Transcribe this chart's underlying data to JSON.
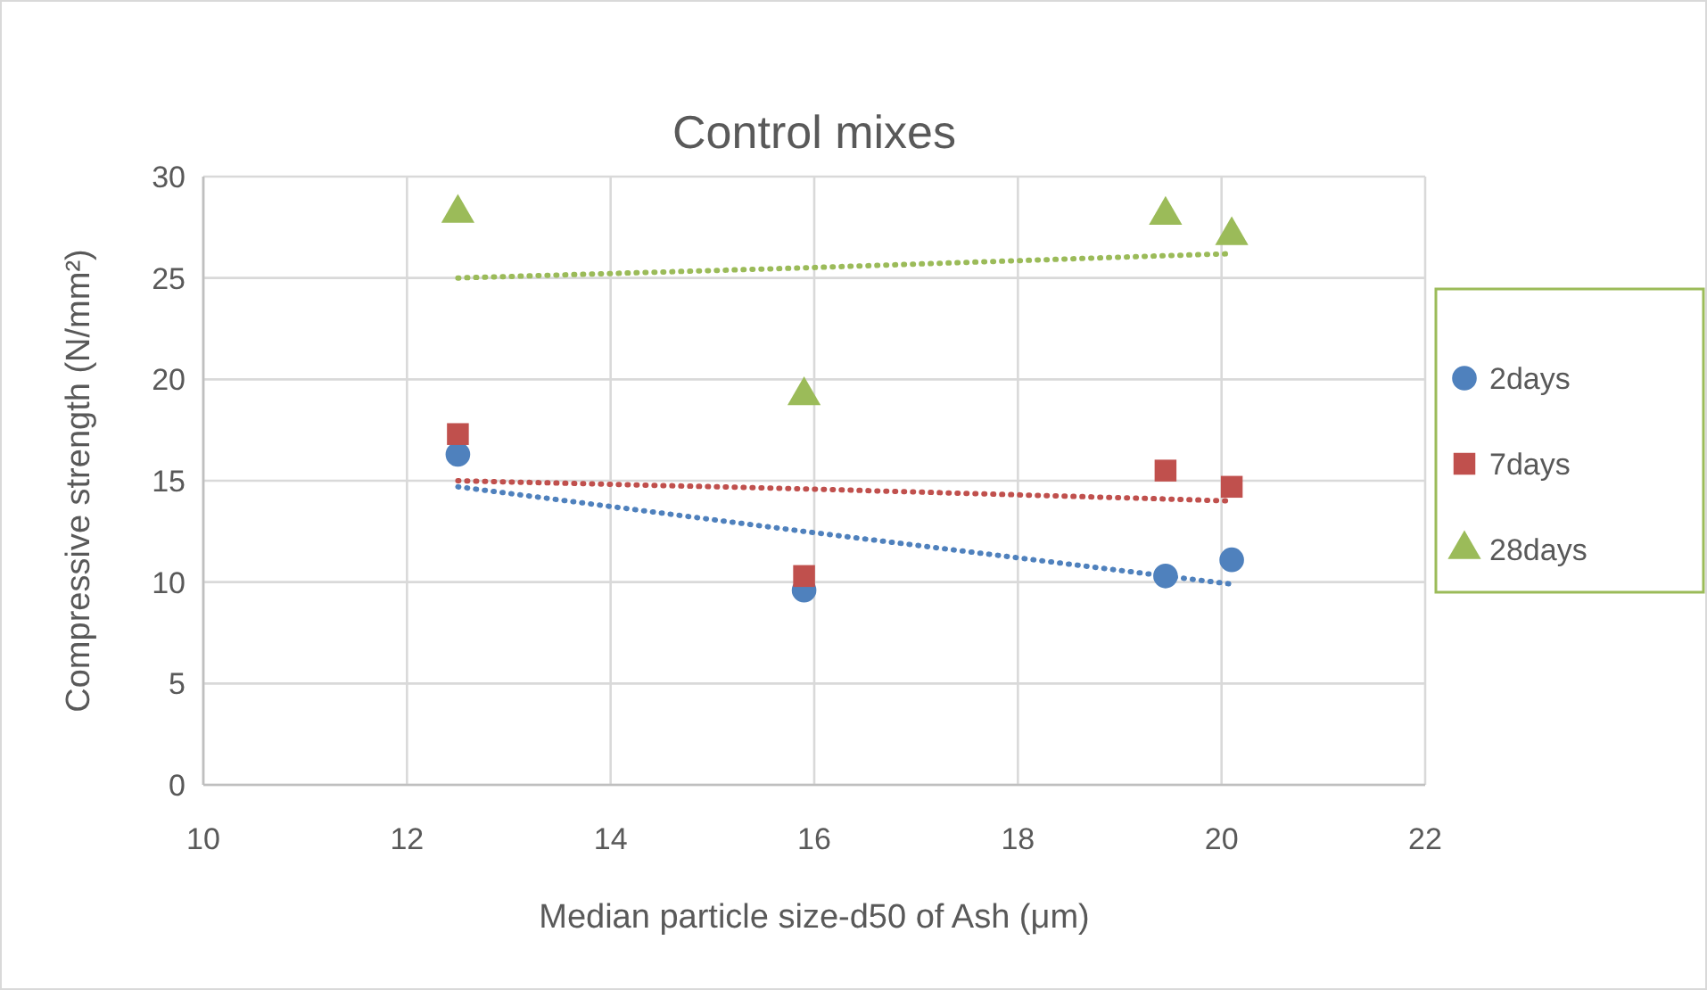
{
  "chart_data": {
    "type": "scatter",
    "title": "Control mixes",
    "xlabel": "Median particle size-d50 of Ash (μm)",
    "ylabel": "Compressive strength (N/mm²)",
    "xlim": [
      10,
      22
    ],
    "xticks": [
      10,
      12,
      14,
      16,
      18,
      20,
      22
    ],
    "ylim": [
      0,
      30
    ],
    "yticks": [
      0,
      5,
      10,
      15,
      20,
      25,
      30
    ],
    "grid": true,
    "legend": "right",
    "x": [
      12.5,
      15.9,
      19.45,
      20.1
    ],
    "series": [
      {
        "name": "2days",
        "color": "#4f81bd",
        "marker": "circle",
        "values": [
          16.3,
          9.6,
          10.3,
          11.1
        ]
      },
      {
        "name": "7days",
        "color": "#c0504d",
        "marker": "square",
        "values": [
          17.3,
          10.3,
          15.5,
          14.7
        ]
      },
      {
        "name": "28days",
        "color": "#9bbb59",
        "marker": "triangle",
        "values": [
          28.2,
          19.2,
          28.1,
          27.1
        ]
      },
      {
        "type": "line",
        "color": "#4f81bd",
        "line_style": "dotted",
        "values": [
          14.7,
          12.5,
          10.3,
          9.9
        ]
      },
      {
        "type": "line",
        "color": "#c0504d",
        "line_style": "dotted",
        "values": [
          15.0,
          14.6,
          14.1,
          14.0
        ]
      },
      {
        "type": "line",
        "color": "#9bbb59",
        "line_style": "dotted",
        "values": [
          25.0,
          25.5,
          26.1,
          26.2
        ]
      }
    ]
  }
}
